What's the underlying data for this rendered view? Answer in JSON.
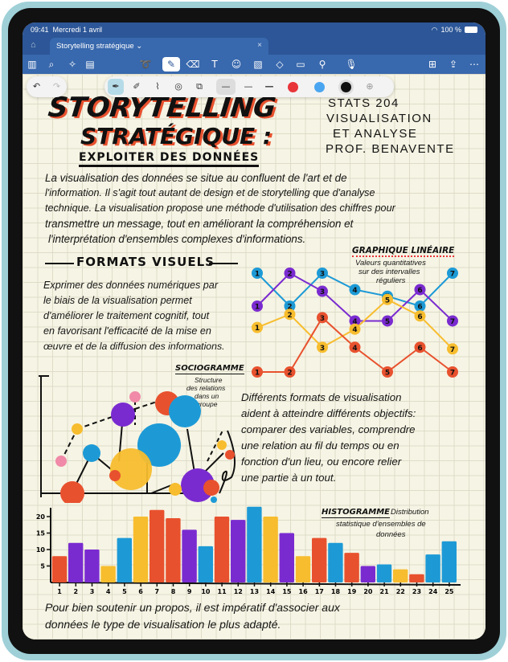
{
  "status": {
    "time": "09:41",
    "date": "Mercredi 1 avril",
    "battery": "100 %"
  },
  "tab": {
    "title": "Storytelling stratégique ⌄",
    "close": "×"
  },
  "toolbar": {
    "icons": [
      "sidebar-icon",
      "search-icon",
      "magic-icon",
      "document-icon",
      "lasso-icon",
      "pen-icon",
      "eraser-icon",
      "text-box-icon",
      "sticker-icon",
      "image-icon",
      "shapes-icon",
      "note-icon",
      "link-icon",
      "microphone-icon",
      "add-page-icon",
      "share-icon",
      "more-icon"
    ]
  },
  "pen_toolbar": {
    "colors": [
      "#e8353a",
      "#4aa5f0",
      "#111111"
    ],
    "tools": [
      "fountain-pen",
      "ballpoint",
      "brush",
      "highlighter",
      "eraser"
    ]
  },
  "colors": {
    "red": "#e8512e",
    "purple": "#7a2bd0",
    "yellow": "#f7bd2e",
    "blue": "#1d9ad6",
    "pink": "#f08aa8"
  },
  "note": {
    "title1": "STORYTELLING",
    "title2": "STRATÉGIQUE :",
    "subtitle": "EXPLOITER DES DONNÉES",
    "course": [
      "STATS 204",
      "VISUALISATION",
      "ET ANALYSE",
      "PROF. BENAVENTE"
    ],
    "intro": [
      "La visualisation des données se situe au confluent de l'art et de",
      "l'information. Il s'agit tout autant de design et de storytelling que d'analyse",
      "technique. La visualisation propose une méthode d'utilisation des chiffres pour",
      "transmettre un message, tout en améliorant la compréhension et",
      "l'interprétation d'ensembles complexes d'informations."
    ],
    "section": "FORMATS VISUELS",
    "formats": [
      "Exprimer des données numériques par",
      "le biais de la visualisation permet",
      "d'améliorer le traitement cognitif, tout",
      "en favorisant l'efficacité de la mise en",
      "œuvre et de la diffusion des informations."
    ],
    "line_title": "GRAPHIQUE LINÉAIRE",
    "line_sub": [
      "Valeurs quantitatives",
      "sur des intervalles",
      "réguliers"
    ],
    "socio_title": "SOCIOGRAMME",
    "socio_sub": [
      "Structure",
      "des relations",
      "dans un",
      "groupe"
    ],
    "objectives": [
      "Différents formats de visualisation",
      "aident à atteindre différents objectifs:",
      "comparer des variables, comprendre",
      "une relation au fil du temps ou en",
      "fonction d'un lieu, ou encore relier",
      "une partie à un tout."
    ],
    "histo_title": "HISTOGRAMME",
    "histo_sub": [
      "Distribution",
      "statistique d'ensembles de",
      "données"
    ],
    "conclusion": [
      "Pour bien soutenir un propos, il est impératif d'associer aux",
      "données le type de visualisation le plus adapté."
    ]
  },
  "chart_data": [
    {
      "type": "line",
      "title": "GRAPHIQUE LINÉAIRE",
      "x": [
        1,
        2,
        3,
        4,
        5,
        6,
        7
      ],
      "series": [
        {
          "color": "#1d9ad6",
          "values": [
            6,
            4,
            6,
            5,
            4.6,
            4,
            6
          ]
        },
        {
          "color": "#7a2bd0",
          "values": [
            4,
            6,
            4.9,
            3.1,
            3.1,
            5,
            3.1
          ]
        },
        {
          "color": "#f7bd2e",
          "values": [
            2.7,
            3.5,
            1.5,
            2.6,
            4.4,
            3.4,
            1.4
          ]
        },
        {
          "color": "#e8512e",
          "values": [
            0,
            0,
            3.3,
            1.5,
            0,
            1.5,
            0
          ]
        }
      ],
      "ylim": [
        0,
        6
      ]
    },
    {
      "type": "bar",
      "title": "HISTOGRAMME",
      "categories": [
        "1",
        "2",
        "3",
        "4",
        "5",
        "6",
        "7",
        "8",
        "9",
        "10",
        "11",
        "12",
        "13",
        "14",
        "15",
        "16",
        "17",
        "18",
        "19",
        "20",
        "21",
        "22",
        "23",
        "24",
        "25"
      ],
      "values": [
        8,
        12,
        10,
        5,
        13.5,
        20,
        22,
        19.5,
        16,
        11,
        20,
        19,
        23,
        20,
        15,
        8,
        13.5,
        12,
        9,
        5,
        5.5,
        4,
        2.5,
        8.5,
        12.5
      ],
      "colors": [
        "red",
        "purple",
        "purple",
        "yellow",
        "blue",
        "yellow",
        "red",
        "red",
        "purple",
        "blue",
        "red",
        "purple",
        "blue",
        "yellow",
        "purple",
        "yellow",
        "red",
        "blue",
        "red",
        "purple",
        "blue",
        "yellow",
        "red",
        "blue",
        "blue"
      ],
      "yticks": [
        "5",
        "10",
        "15",
        "20"
      ],
      "ylim": [
        0,
        25
      ]
    }
  ]
}
